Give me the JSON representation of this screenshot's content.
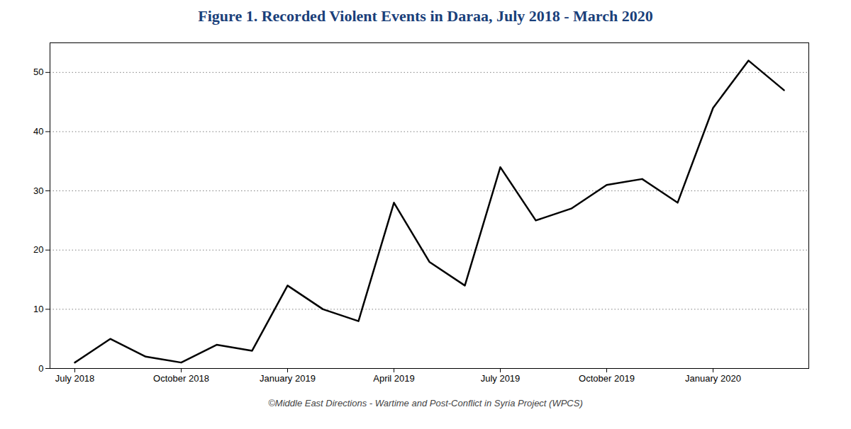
{
  "chart_data": {
    "type": "line",
    "title": "Figure 1. Recorded Violent Events in Daraa, July 2018 - March 2020",
    "title_color": "#1a3f7a",
    "footnote": "©Middle East Directions - Wartime and Post-Conflict in Syria Project (WPCS)",
    "categories": [
      "July 2018",
      null,
      null,
      "October 2018",
      null,
      null,
      "January 2019",
      null,
      null,
      "April 2019",
      null,
      null,
      "July 2019",
      null,
      null,
      "October 2019",
      null,
      null,
      "January 2020",
      null,
      null
    ],
    "values": [
      1,
      5,
      2,
      1,
      4,
      3,
      14,
      10,
      8,
      28,
      18,
      14,
      34,
      25,
      27,
      31,
      32,
      28,
      44,
      52,
      47
    ],
    "color": "#000000",
    "ylim": [
      0,
      55
    ],
    "yticks": [
      0,
      10,
      20,
      30,
      40,
      50
    ],
    "grid": true
  }
}
